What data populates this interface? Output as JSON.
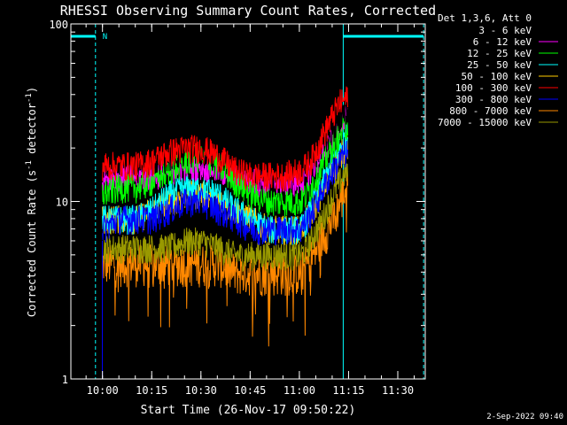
{
  "chart_data": {
    "type": "line",
    "title": "RHESSI Observing Summary Count Rates, Corrected",
    "xlabel": "Start Time (26-Nov-17 09:50:22)",
    "ylabel": "Corrected Count Rate (s⁻¹ detector⁻¹)",
    "ylabel_main": "Corrected Count Rate (s",
    "ylabel_sup1": "-1",
    "ylabel_mid": " detector",
    "ylabel_sup2": "-1",
    "ylabel_end": ")",
    "yscale": "log",
    "ylim": [
      1,
      100
    ],
    "y_ticks": [
      {
        "value": 1,
        "label": "1"
      },
      {
        "value": 10,
        "label": "10"
      },
      {
        "value": 100,
        "label": "100"
      }
    ],
    "x_ticks": [
      "10:00",
      "10:15",
      "10:30",
      "10:45",
      "11:00",
      "11:15",
      "11:30"
    ],
    "x_tick_minutes": [
      9.633,
      24.633,
      39.633,
      54.633,
      69.633,
      84.633,
      99.633
    ],
    "xlim_minutes": [
      0,
      108
    ],
    "legend_title": "Det 1,3,6, Att 0",
    "legend_position": "top-right",
    "night_label": "N",
    "timestamp": "2-Sep-2022 09:40",
    "series": [
      {
        "name": "3 - 6 keV",
        "color": "#000000",
        "x": [
          9.6,
          15,
          20,
          25,
          30,
          35,
          40,
          45,
          50,
          55,
          60,
          65,
          70,
          72,
          74,
          76,
          78,
          80,
          82,
          84
        ],
        "y": [
          17,
          17,
          17,
          17,
          18,
          19,
          19,
          18,
          17,
          16,
          16,
          16,
          16,
          17,
          18,
          20,
          23,
          26,
          30,
          33
        ]
      },
      {
        "name": "6 - 12 keV",
        "color": "#ff00ff",
        "x": [
          9.6,
          15,
          20,
          25,
          30,
          35,
          40,
          45,
          50,
          55,
          60,
          65,
          70,
          72,
          74,
          76,
          78,
          80,
          82,
          84
        ],
        "y": [
          14,
          14,
          14,
          14,
          15,
          16,
          16,
          15,
          14,
          13,
          13,
          13,
          13,
          14,
          16,
          18,
          21,
          24,
          27,
          30
        ]
      },
      {
        "name": "12 - 25 keV",
        "color": "#00ff00",
        "x": [
          9.6,
          15,
          20,
          25,
          30,
          35,
          40,
          45,
          50,
          55,
          60,
          65,
          70,
          72,
          74,
          76,
          78,
          80,
          82,
          84
        ],
        "y": [
          11,
          12,
          12,
          13,
          15,
          17,
          18,
          16,
          13,
          11,
          10,
          10,
          10,
          11,
          13,
          15,
          18,
          21,
          24,
          27
        ]
      },
      {
        "name": "25 - 50 keV",
        "color": "#00ffff",
        "x": [
          9.6,
          15,
          20,
          25,
          30,
          35,
          40,
          45,
          50,
          55,
          60,
          65,
          70,
          72,
          74,
          76,
          78,
          80,
          82,
          84
        ],
        "y": [
          8,
          8,
          8,
          9,
          11,
          12,
          12,
          11,
          9,
          8,
          7,
          7,
          7,
          8,
          10,
          12,
          14,
          17,
          20,
          23
        ]
      },
      {
        "name": "50 - 100 keV",
        "color": "#ffcc00",
        "x": [
          9.6,
          15,
          20,
          25,
          30,
          35,
          40,
          45,
          50,
          55,
          60,
          65,
          70,
          72,
          74,
          76,
          78,
          80,
          82,
          84
        ],
        "y": [
          8,
          8,
          8,
          9,
          10,
          11,
          11,
          10,
          9,
          8,
          7,
          7,
          7,
          8,
          9,
          11,
          13,
          15,
          18,
          21
        ]
      },
      {
        "name": "100 - 300 keV",
        "color": "#ff0000",
        "x": [
          9.6,
          15,
          20,
          25,
          30,
          35,
          40,
          45,
          50,
          55,
          60,
          65,
          70,
          72,
          74,
          76,
          78,
          80,
          82,
          84
        ],
        "y": [
          16,
          16,
          16,
          17,
          19,
          20,
          20,
          18,
          15,
          14,
          14,
          14,
          15,
          16,
          18,
          22,
          26,
          31,
          36,
          38
        ]
      },
      {
        "name": "300 - 800 keV",
        "color": "#0000ff",
        "x": [
          9.6,
          15,
          20,
          25,
          30,
          35,
          40,
          45,
          50,
          55,
          60,
          65,
          70,
          72,
          74,
          76,
          78,
          80,
          82,
          84
        ],
        "y": [
          7,
          8,
          8,
          8,
          9,
          10,
          10,
          9,
          8,
          7,
          7,
          7,
          7,
          8,
          9,
          11,
          13,
          15,
          17,
          19
        ]
      },
      {
        "name": "800 - 7000 keV",
        "color": "#ff8800",
        "x": [
          9.6,
          15,
          20,
          25,
          30,
          35,
          40,
          45,
          50,
          55,
          60,
          65,
          70,
          72,
          74,
          76,
          78,
          80,
          82,
          84
        ],
        "y": [
          4.5,
          4.5,
          4.5,
          4.5,
          4.5,
          4.5,
          4.5,
          4.5,
          4,
          4,
          4,
          4,
          4,
          4.5,
          5,
          6,
          7,
          8,
          10,
          12
        ]
      },
      {
        "name": "7000 - 15000 keV",
        "color": "#999900",
        "x": [
          9.6,
          15,
          20,
          25,
          30,
          35,
          40,
          45,
          50,
          55,
          60,
          65,
          70,
          72,
          74,
          76,
          78,
          80,
          82,
          84
        ],
        "y": [
          5.5,
          5.5,
          5.5,
          5.5,
          5.5,
          6,
          6,
          5.5,
          5,
          5,
          5,
          5,
          5,
          5.5,
          6.5,
          7.5,
          9,
          11,
          13,
          15
        ]
      }
    ],
    "markers": {
      "data_start": 9.6,
      "data_end": 84.5,
      "boundaries": [
        0,
        7.5,
        83,
        107.5
      ],
      "night_segments": [
        [
          0,
          7.5
        ],
        [
          83,
          107.5
        ]
      ]
    }
  }
}
